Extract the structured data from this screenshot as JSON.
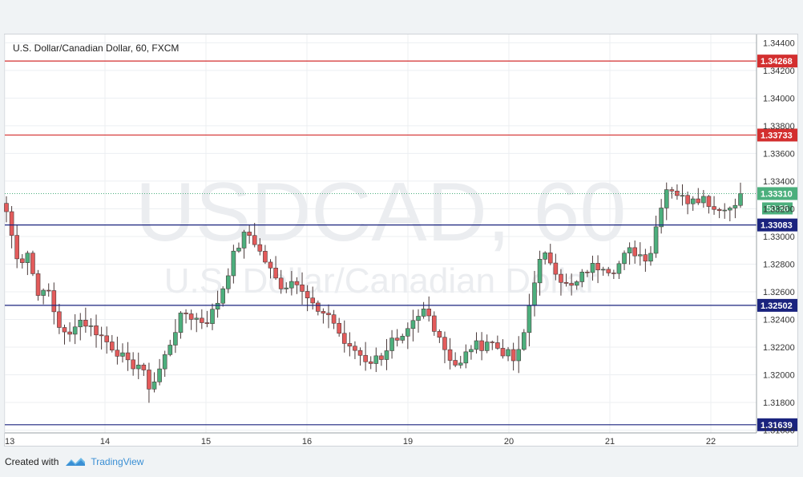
{
  "chart_title": "U.S. Dollar/Canadian Dollar, 60, FXCM",
  "watermark": {
    "symbol": "USDCAD, 60",
    "name": "U.S. Dollar/Canadian Dollar"
  },
  "footer": {
    "created_with": "Created with",
    "brand": "TradingView"
  },
  "chart_data": {
    "type": "candlestick",
    "title": "U.S. Dollar/Canadian Dollar, 60, FXCM",
    "ylim": [
      1.3158,
      1.3446
    ],
    "y_ticks": [
      "1.34400",
      "1.34200",
      "1.34000",
      "1.33800",
      "1.33600",
      "1.33400",
      "1.33200",
      "1.33000",
      "1.32800",
      "1.32600",
      "1.32400",
      "1.32200",
      "1.32000",
      "1.31800",
      "1.31600"
    ],
    "x_ticks": [
      "13",
      "14",
      "15",
      "16",
      "19",
      "20",
      "21",
      "22"
    ],
    "horizontal_lines": [
      {
        "value": 1.34268,
        "label": "1.34268",
        "color": "#d32f2f"
      },
      {
        "value": 1.33733,
        "label": "1.33733",
        "color": "#d32f2f"
      },
      {
        "value": 1.33083,
        "label": "1.33083",
        "color": "#1a237e"
      },
      {
        "value": 1.32502,
        "label": "1.32502",
        "color": "#1a237e"
      },
      {
        "value": 1.31639,
        "label": "1.31639",
        "color": "#1a237e"
      }
    ],
    "last_price": {
      "value": 1.3331,
      "label": "1.33310",
      "countdown": "50:38",
      "color": "#4caf7d"
    },
    "up_color": "#4caf7d",
    "down_color": "#e35b5b",
    "line_color": "#4a3a3a",
    "close_path": [
      1.3318,
      1.3295,
      1.328,
      1.329,
      1.327,
      1.3255,
      1.3263,
      1.3245,
      1.3232,
      1.3225,
      1.3238,
      1.324,
      1.3235,
      1.3232,
      1.3227,
      1.3222,
      1.3218,
      1.3212,
      1.3205,
      1.321,
      1.32,
      1.319,
      1.32,
      1.3212,
      1.3225,
      1.3238,
      1.3245,
      1.3242,
      1.324,
      1.3238,
      1.3245,
      1.3255,
      1.327,
      1.3285,
      1.3295,
      1.3303,
      1.3298,
      1.3288,
      1.328,
      1.327,
      1.3265,
      1.3265,
      1.327,
      1.3265,
      1.3255,
      1.3248,
      1.324,
      1.3245,
      1.3235,
      1.3225,
      1.3218,
      1.3218,
      1.3212,
      1.321,
      1.3212,
      1.3215,
      1.3225,
      1.3222,
      1.3225,
      1.3235,
      1.324,
      1.3248,
      1.3238,
      1.323,
      1.3218,
      1.321,
      1.3205,
      1.3215,
      1.3222,
      1.322,
      1.3225,
      1.3222,
      1.3218,
      1.3215,
      1.321,
      1.3218,
      1.3245,
      1.327,
      1.3285,
      1.3285,
      1.3277,
      1.3268,
      1.3262,
      1.3265,
      1.3272,
      1.3278,
      1.3278,
      1.328,
      1.3276,
      1.3278,
      1.3285,
      1.329,
      1.3288,
      1.3285,
      1.329,
      1.3315,
      1.3335,
      1.3335,
      1.333,
      1.3325,
      1.333,
      1.3328,
      1.3328,
      1.332,
      1.3322,
      1.3318,
      1.3325,
      1.3331
    ],
    "candle_count": 140
  }
}
